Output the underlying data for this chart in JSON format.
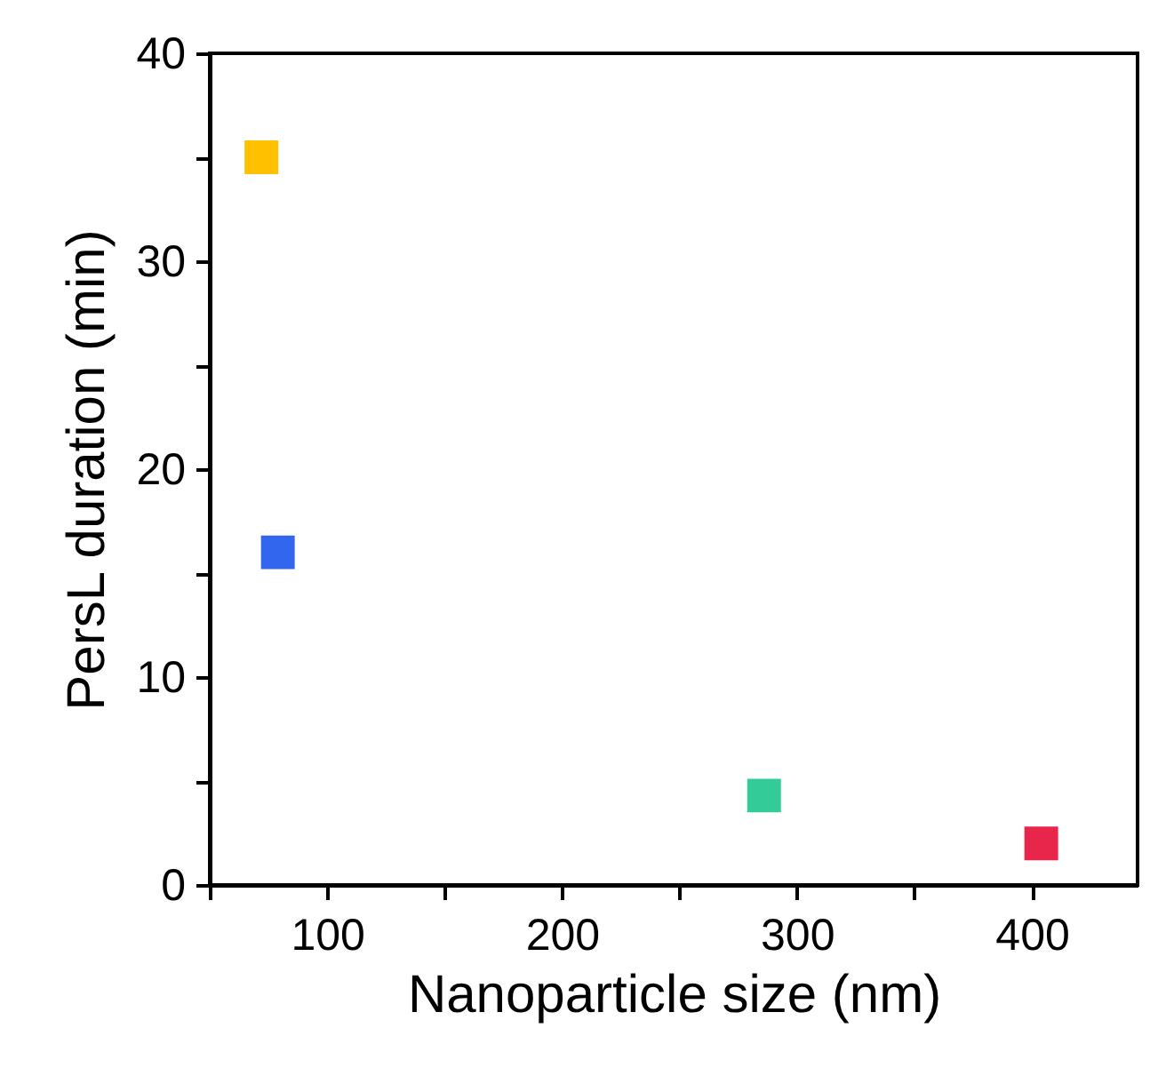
{
  "chart_data": {
    "type": "scatter",
    "xlabel": "Nanoparticle size (nm)",
    "ylabel": "PersL duration (min)",
    "x": [
      72,
      79,
      286,
      404
    ],
    "values": [
      35,
      16,
      4.3,
      2
    ],
    "colors": [
      "#ffc000",
      "#3366ee",
      "#33cc99",
      "#e8264c"
    ],
    "marker": "square",
    "xlim": [
      50,
      445
    ],
    "xticks": [
      {
        "value": 50,
        "label": null
      },
      100,
      {
        "value": 150,
        "label": null
      },
      200,
      {
        "value": 250,
        "label": null
      },
      300,
      {
        "value": 350,
        "label": null
      },
      400
    ],
    "ylim": [
      0,
      40
    ],
    "yticks": [
      0,
      {
        "value": 5,
        "label": null
      },
      10,
      {
        "value": 15,
        "label": null
      },
      20,
      {
        "value": 25,
        "label": null
      },
      30,
      {
        "value": 35,
        "label": null
      },
      40
    ],
    "grid": false
  }
}
